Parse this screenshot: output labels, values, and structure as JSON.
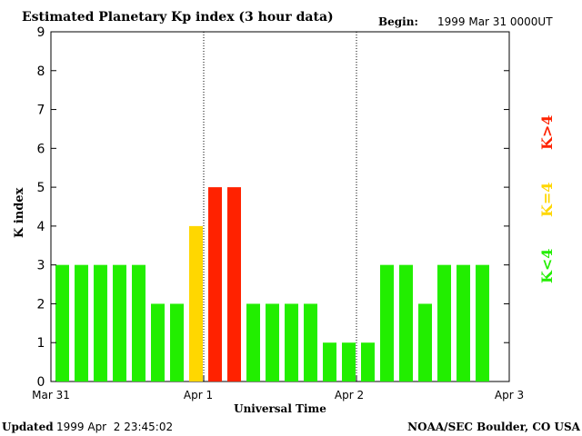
{
  "header": {
    "title": "Estimated Planetary Kp index (3 hour data)",
    "begin_label": "Begin:",
    "begin_value": "1999 Mar 31 0000UT"
  },
  "footer": {
    "updated_label": "Updated",
    "updated_value": "1999 Apr  2 23:45:02",
    "source": "NOAA/SEC Boulder, CO USA"
  },
  "legend": {
    "high": "K>4",
    "equal": "K=4",
    "low": "K<4"
  },
  "colors": {
    "low": "#22ee00",
    "equal": "#ffd700",
    "high": "#ff2200"
  },
  "chart_data": {
    "type": "bar",
    "title": "Estimated Planetary Kp index (3 hour data)",
    "xlabel": "Universal Time",
    "ylabel": "K index",
    "ylim": [
      0,
      9
    ],
    "yticks": [
      0,
      1,
      2,
      3,
      4,
      5,
      6,
      7,
      8,
      9
    ],
    "day_labels": [
      "Mar 31",
      "Apr 1",
      "Apr 2",
      "Apr 3"
    ],
    "day_separators": [
      "Apr 1",
      "Apr 2"
    ],
    "bins_per_day": 8,
    "values": [
      3,
      3,
      3,
      3,
      3,
      2,
      2,
      4,
      5,
      5,
      2,
      2,
      2,
      2,
      1,
      1,
      1,
      3,
      3,
      2,
      3,
      3,
      3
    ],
    "grid": false
  }
}
